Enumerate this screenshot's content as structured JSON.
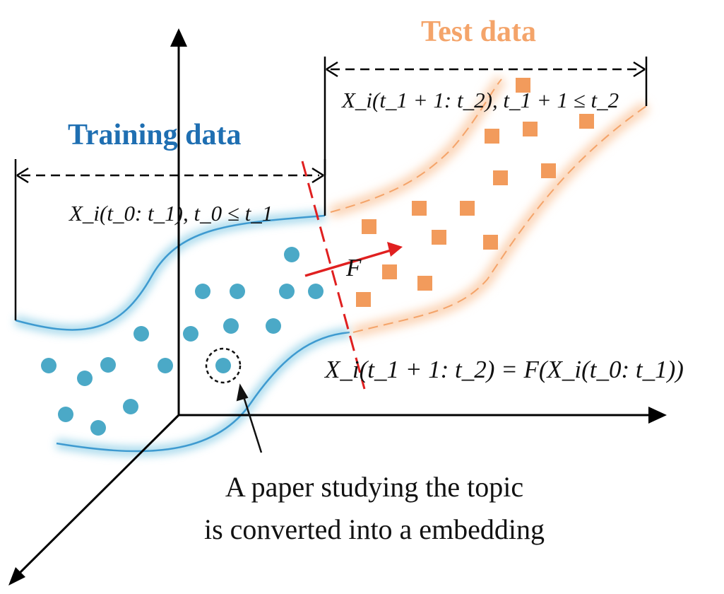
{
  "labels": {
    "training": "Training data",
    "test": "Test data",
    "train_range": "X_i(t_0: t_1), t_0 ≤ t_1",
    "test_range": "X_i(t_1 + 1: t_2), t_1 + 1 ≤ t_2",
    "equation": "X_i(t_1 + 1: t_2) = F(X_i(t_0: t_1))",
    "func": "F",
    "caption_line1": "A paper studying the topic",
    "caption_line2": "is converted into a embedding"
  },
  "colors": {
    "training": "#1F6FB2",
    "test": "#F4A46A",
    "dot": "#4BA9C7",
    "square": "#F29B5C",
    "split": "#E02020",
    "axis": "#000000"
  }
}
